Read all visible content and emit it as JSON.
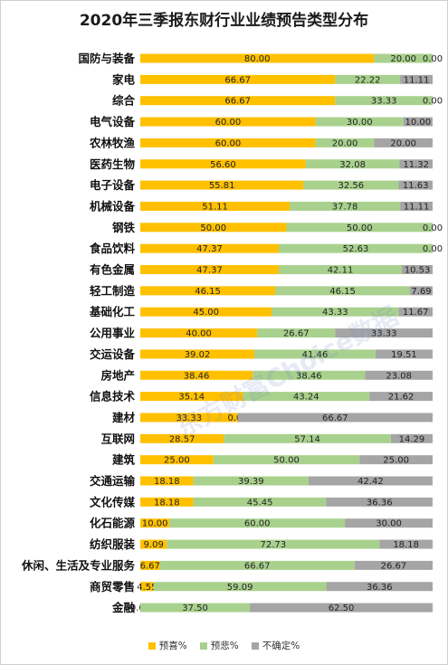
{
  "chart_data": {
    "type": "bar",
    "orientation": "horizontal-stacked-100",
    "title": "2020年三季报东财行业业绩预告类型分布",
    "categories": [
      "国防与装备",
      "家电",
      "综合",
      "电气设备",
      "农林牧渔",
      "医药生物",
      "电子设备",
      "机械设备",
      "钢铁",
      "食品饮料",
      "有色金属",
      "轻工制造",
      "基础化工",
      "公用事业",
      "交运设备",
      "房地产",
      "信息技术",
      "建材",
      "互联网",
      "建筑",
      "交通运输",
      "文化传媒",
      "化石能源",
      "纺织服装",
      "休闲、生活及专业服务",
      "商贸零售",
      "金融"
    ],
    "series": [
      {
        "name": "预喜%",
        "color": "#FFC000",
        "values": [
          80.0,
          66.67,
          66.67,
          60.0,
          60.0,
          56.6,
          55.81,
          51.11,
          50.0,
          47.37,
          47.37,
          46.15,
          45.0,
          40.0,
          39.02,
          38.46,
          35.14,
          33.33,
          28.57,
          25.0,
          18.18,
          18.18,
          10.0,
          9.09,
          6.67,
          4.55,
          0.0
        ]
      },
      {
        "name": "预悲%",
        "color": "#A9D18E",
        "values": [
          20.0,
          22.22,
          33.33,
          30.0,
          20.0,
          32.08,
          32.56,
          37.78,
          50.0,
          52.63,
          42.11,
          46.15,
          43.33,
          26.67,
          41.46,
          38.46,
          43.24,
          0.0,
          57.14,
          50.0,
          39.39,
          45.45,
          60.0,
          72.73,
          66.67,
          59.09,
          37.5
        ]
      },
      {
        "name": "不确定%",
        "color": "#A5A5A5",
        "values": [
          0.0,
          11.11,
          0.0,
          10.0,
          20.0,
          11.32,
          11.63,
          11.11,
          0.0,
          0.0,
          10.53,
          7.69,
          11.67,
          33.33,
          19.51,
          23.08,
          21.62,
          66.67,
          14.29,
          25.0,
          42.42,
          36.36,
          30.0,
          18.18,
          26.67,
          36.36,
          62.5
        ]
      }
    ],
    "legend_position": "bottom",
    "grid": false,
    "watermark": "东方财富Choice数据"
  }
}
